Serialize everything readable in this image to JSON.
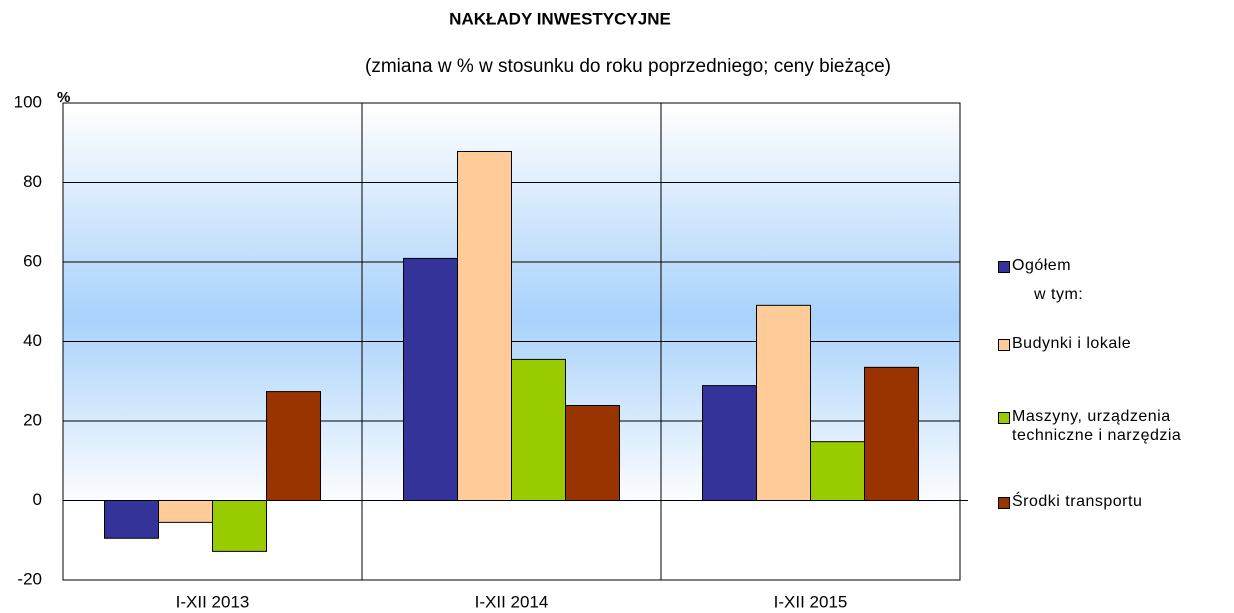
{
  "chart_data": {
    "type": "bar",
    "title": "NAKŁADY  INWESTYCYJNE",
    "subtitle": "(zmiana w % w stosunku do roku poprzedniego; ceny bieżące)",
    "y_label": "%",
    "legend_note": "w tym:",
    "categories": [
      "I-XII 2013",
      "I-XII 2014",
      "I-XII 2015"
    ],
    "series": [
      {
        "name": "Ogółem",
        "color": "#333399",
        "values": [
          -9.5,
          60.9,
          28.9
        ]
      },
      {
        "name": "Budynki i lokale",
        "color": "#FFCC99",
        "values": [
          -5.5,
          87.8,
          49.1
        ]
      },
      {
        "name": "Maszyny, urządzenia\ntechniczne i narzędzia",
        "color": "#99CC00",
        "values": [
          -12.8,
          35.5,
          14.8
        ]
      },
      {
        "name": "Środki transportu",
        "color": "#993300",
        "values": [
          27.4,
          23.9,
          33.5
        ]
      }
    ],
    "ylim": [
      -20,
      100
    ],
    "yticks": [
      -20,
      0,
      20,
      40,
      60,
      80,
      100
    ],
    "grid": true
  }
}
